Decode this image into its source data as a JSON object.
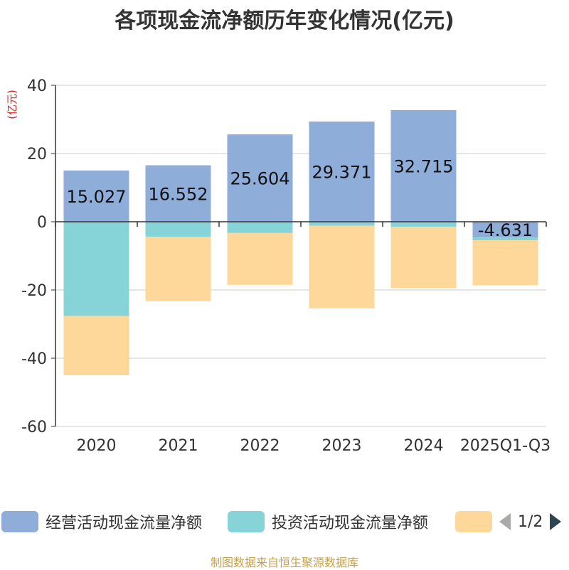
{
  "chart_data": {
    "type": "bar",
    "stacked": true,
    "title": "各项现金流净额历年变化情况(亿元)",
    "ylabel": "(亿元)",
    "xlabel": "",
    "ylim": [
      -60,
      40
    ],
    "yticks": [
      40,
      20,
      0,
      -20,
      -40,
      -60
    ],
    "categories": [
      "2020",
      "2021",
      "2022",
      "2023",
      "2024",
      "2025Q1-Q3"
    ],
    "series": [
      {
        "name": "经营活动现金流量净额",
        "color": "#8eadd9",
        "values": [
          15.027,
          16.552,
          25.604,
          29.371,
          32.715,
          -4.631
        ],
        "labels": [
          "15.027",
          "16.552",
          "25.604",
          "29.371",
          "32.715",
          "-4.631"
        ]
      },
      {
        "name": "投资活动现金流量净额",
        "color": "#86d4d8",
        "values": [
          -27.6,
          -4.4,
          -3.3,
          -1.2,
          -1.5,
          -0.8
        ]
      },
      {
        "name": "",
        "color": "#fdd89a",
        "values": [
          -17.4,
          -18.9,
          -15.2,
          -24.2,
          -18.0,
          -13.2
        ]
      }
    ],
    "legend": {
      "page": "1/2"
    },
    "source": "制图数据来自恒生聚源数据库"
  }
}
